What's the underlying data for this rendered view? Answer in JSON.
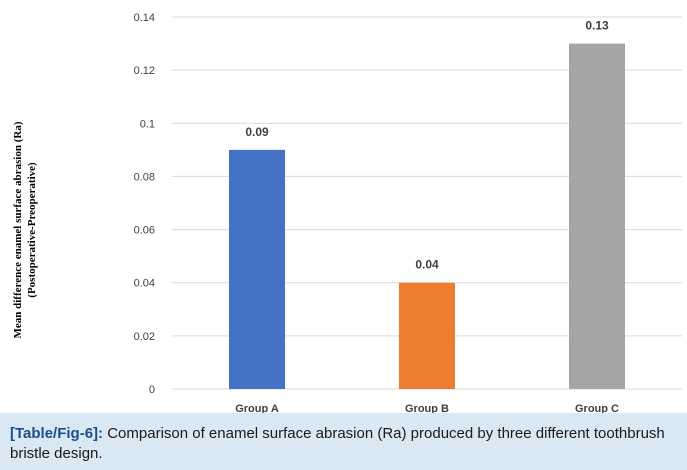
{
  "chart_data": {
    "type": "bar",
    "categories": [
      "Group A",
      "Group B",
      "Group C"
    ],
    "values": [
      0.09,
      0.04,
      0.13
    ],
    "data_labels": [
      "0.09",
      "0.04",
      "0.13"
    ],
    "colors": [
      "#4472c4",
      "#ed7d31",
      "#a5a5a5"
    ],
    "ylabel_lines": [
      "Mean difference enamel surface abrasion (Ra)",
      "(Postoperative-Preoperative)"
    ],
    "ylim": [
      0,
      0.14
    ],
    "yticks": [
      0,
      0.02,
      0.04,
      0.06,
      0.08,
      0.1,
      0.12,
      0.14
    ],
    "ytick_labels": [
      "0",
      "0.02",
      "0.04",
      "0.06",
      "0.08",
      "0.1",
      "0.12",
      "0.14"
    ],
    "grid": true,
    "legend": "none"
  },
  "caption": {
    "tag": "[Table/Fig-6]:",
    "text": " Comparison of enamel surface abrasion (Ra) produced by three different toothbrush bristle design."
  },
  "colors": {
    "caption_background": "#d9e8f3",
    "caption_tag": "#1c4f8a",
    "gridline": "#d9d9d9"
  }
}
